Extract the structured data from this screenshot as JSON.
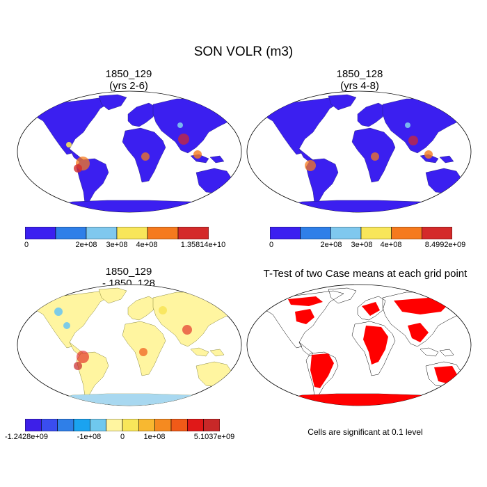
{
  "title": "SON VOLR (m3)",
  "panels": [
    {
      "title_line1": "1850_129",
      "title_line2": "(yrs 2-6)",
      "colorbar": {
        "colors": [
          "#3b1ff0",
          "#2f7fe8",
          "#7fc8ee",
          "#f8e65a",
          "#f57a1e",
          "#d42a2a"
        ],
        "labels": [
          "0",
          "2e+08",
          "3e+08",
          "4e+08",
          "1.35814e+10"
        ]
      }
    },
    {
      "title_line1": "1850_128",
      "title_line2": "(yrs 4-8)",
      "colorbar": {
        "colors": [
          "#3b1ff0",
          "#2f7fe8",
          "#7fc8ee",
          "#f8e65a",
          "#f57a1e",
          "#d42a2a"
        ],
        "labels": [
          "0",
          "2e+08",
          "3e+08",
          "4e+08",
          "8.4992e+09"
        ]
      }
    },
    {
      "title_line1": "1850_129",
      "title_line2": "- 1850_128",
      "colorbar": {
        "colors": [
          "#3d1fe8",
          "#3a4df0",
          "#2f7fe8",
          "#1aa3f0",
          "#6fc8ee",
          "#fff5a0",
          "#f8e65a",
          "#f8b830",
          "#f58a20",
          "#f05a18",
          "#e01818",
          "#c82828"
        ],
        "labels": [
          "-1.2428e+09",
          "-1e+08",
          "0",
          "1e+08",
          "5.1037e+09"
        ]
      }
    },
    {
      "title_line1": "T-Test of two Case means at each grid point",
      "note": "Cells are significant at 0.1 level"
    }
  ]
}
